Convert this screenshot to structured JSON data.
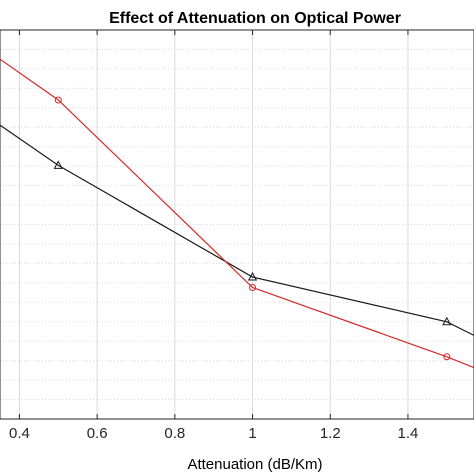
{
  "chart_data": {
    "type": "line",
    "title": "Effect of Attenuation on Optical Power",
    "xlabel": "Attenuation (dB/Km)",
    "ylabel": "",
    "xlim": [
      0.35,
      1.57
    ],
    "ylim": [
      0,
      10
    ],
    "x_ticks": [
      0.4,
      0.6,
      0.8,
      1,
      1.2,
      1.4
    ],
    "x_tick_labels": [
      "0.4",
      "0.6",
      "0.8",
      "1",
      "1.2",
      "1.4"
    ],
    "grid": true,
    "series": [
      {
        "color": "#1a1a1a",
        "marker": "triangle",
        "points": [
          [
            0.3,
            7.9
          ],
          [
            0.5,
            6.52
          ],
          [
            1.0,
            3.65
          ],
          [
            1.5,
            2.5
          ],
          [
            1.6,
            2.0
          ]
        ]
      },
      {
        "color": "#d62728",
        "marker": "circle",
        "points": [
          [
            0.3,
            9.6
          ],
          [
            0.5,
            8.2
          ],
          [
            1.0,
            3.38
          ],
          [
            1.5,
            1.6
          ],
          [
            1.6,
            1.2
          ]
        ]
      }
    ],
    "marker_x": [
      0.5,
      1.0,
      1.5
    ]
  }
}
